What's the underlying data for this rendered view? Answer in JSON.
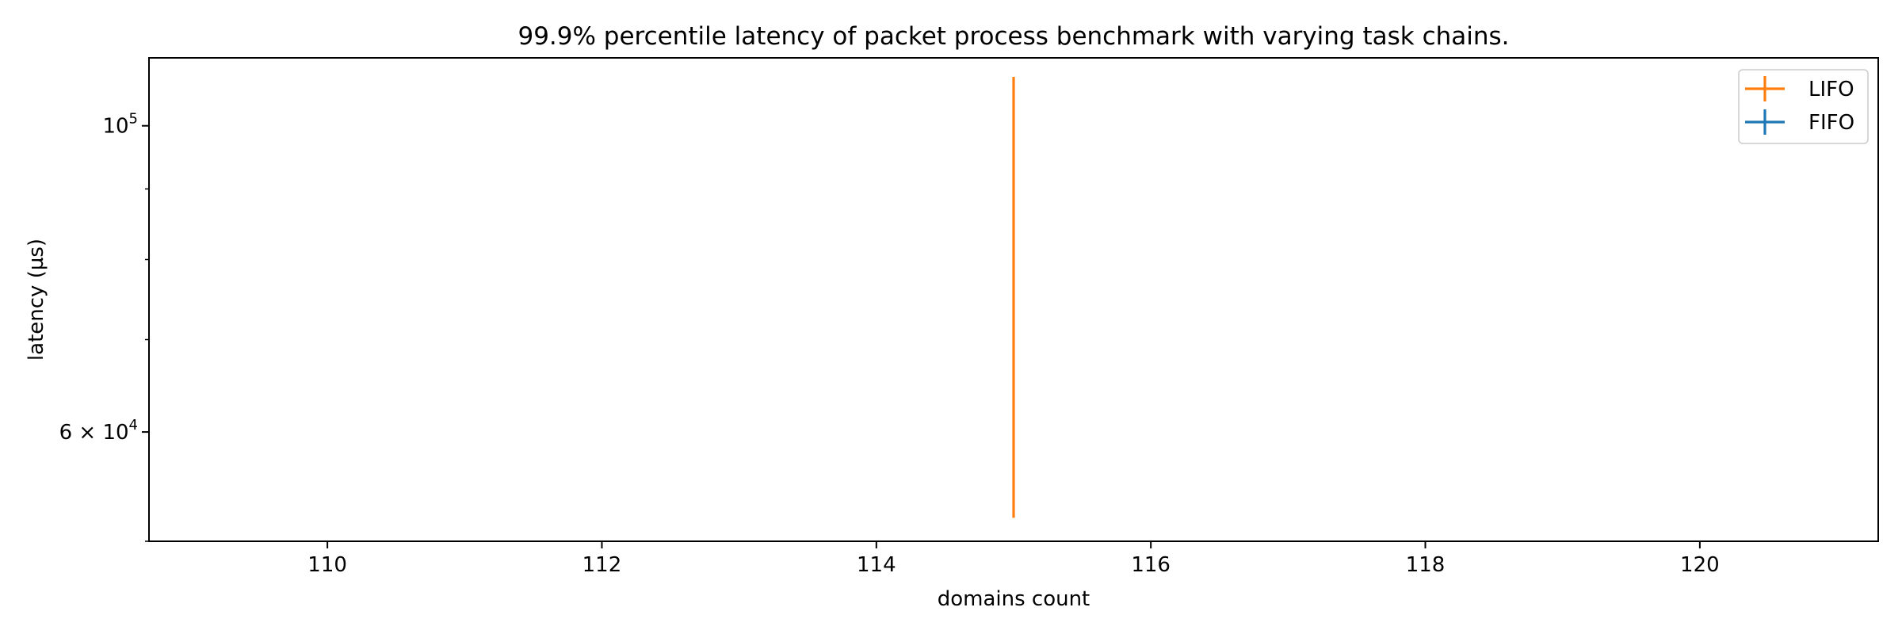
{
  "chart_data": {
    "type": "errorbar",
    "title": "99.9% percentile latency of packet process benchmark with varying task chains.",
    "xlabel": "domains count",
    "ylabel": "latency (µs)",
    "xlim": [
      108.7,
      121.3
    ],
    "ylim": [
      50000,
      112000
    ],
    "y_scale": "log",
    "x_ticks": [
      110,
      112,
      114,
      116,
      118,
      120
    ],
    "x_tick_labels": [
      "110",
      "112",
      "114",
      "116",
      "118",
      "120"
    ],
    "y_major_ticks": [
      60000,
      100000
    ],
    "y_major_tick_labels": [
      {
        "base": "6 × 10",
        "exp": "4"
      },
      {
        "base": "10",
        "exp": "5"
      }
    ],
    "y_minor_ticks": [
      50000,
      70000,
      80000,
      90000
    ],
    "legend_position": "upper right",
    "series": [
      {
        "name": "LIFO",
        "color": "#ff7f0e",
        "points": [
          {
            "x": 115,
            "y_low": 52000,
            "y_high": 108500
          }
        ]
      },
      {
        "name": "FIFO",
        "color": "#1f77b4",
        "points": []
      }
    ]
  }
}
